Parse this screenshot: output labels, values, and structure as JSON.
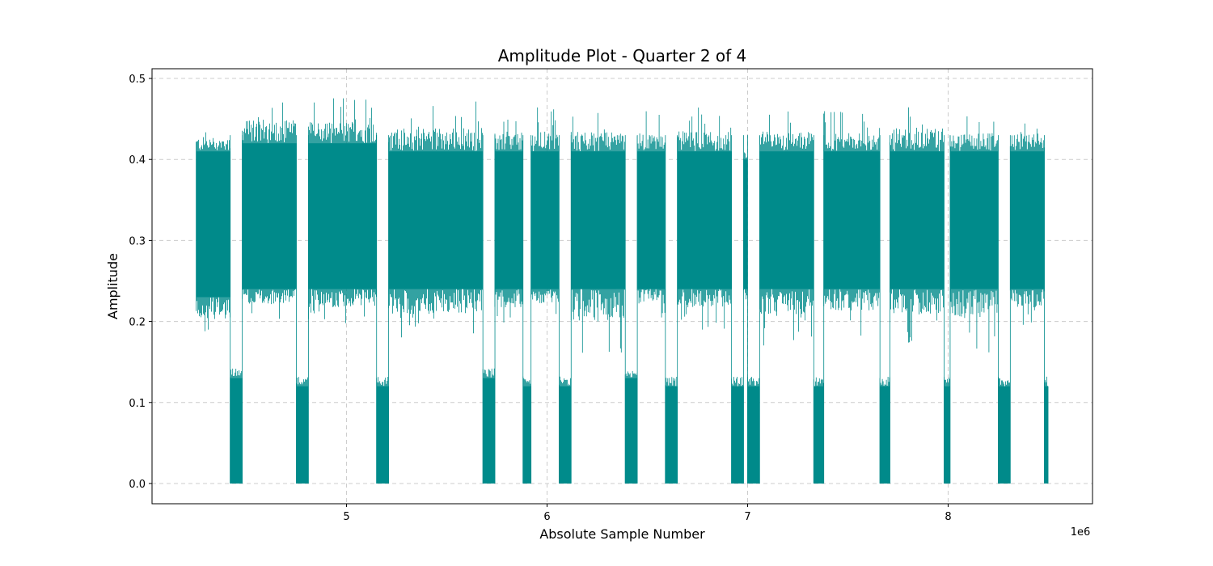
{
  "chart_data": {
    "type": "line",
    "title": "Amplitude Plot - Quarter 2 of 4",
    "xlabel": "Absolute Sample Number",
    "ylabel": "Amplitude",
    "x_offset_label": "1e6",
    "xlim": [
      4.03,
      8.72
    ],
    "ylim": [
      -0.025,
      0.512
    ],
    "xticks": [
      5,
      6,
      7,
      8
    ],
    "xtick_labels": [
      "5",
      "6",
      "7",
      "8"
    ],
    "yticks": [
      0.0,
      0.1,
      0.2,
      0.3,
      0.4,
      0.5
    ],
    "ytick_labels": [
      "0.0",
      "0.1",
      "0.2",
      "0.3",
      "0.4",
      "0.5"
    ],
    "grid": true,
    "color": "#008b8b",
    "series": [
      {
        "segments": [
          {
            "kind": "high",
            "x_start": 4.25,
            "x_end": 4.42,
            "low": 0.23,
            "high": 0.41,
            "peak_max": 0.45,
            "peak_min": 0.17
          },
          {
            "kind": "low",
            "x_start": 4.42,
            "x_end": 4.48,
            "low": 0.0,
            "high": 0.13
          },
          {
            "kind": "high",
            "x_start": 4.48,
            "x_end": 4.75,
            "low": 0.24,
            "high": 0.42,
            "peak_max": 0.485,
            "peak_min": 0.2
          },
          {
            "kind": "low",
            "x_start": 4.75,
            "x_end": 4.81,
            "low": 0.0,
            "high": 0.12
          },
          {
            "kind": "high",
            "x_start": 4.81,
            "x_end": 5.15,
            "low": 0.24,
            "high": 0.42,
            "peak_max": 0.48,
            "peak_min": 0.19
          },
          {
            "kind": "low",
            "x_start": 5.15,
            "x_end": 5.21,
            "low": 0.0,
            "high": 0.12
          },
          {
            "kind": "high",
            "x_start": 5.21,
            "x_end": 5.68,
            "low": 0.24,
            "high": 0.41,
            "peak_max": 0.475,
            "peak_min": 0.17
          },
          {
            "kind": "low",
            "x_start": 5.68,
            "x_end": 5.74,
            "low": 0.0,
            "high": 0.13
          },
          {
            "kind": "high",
            "x_start": 5.74,
            "x_end": 5.88,
            "low": 0.24,
            "high": 0.41,
            "peak_max": 0.46,
            "peak_min": 0.19
          },
          {
            "kind": "low",
            "x_start": 5.88,
            "x_end": 5.92,
            "low": 0.0,
            "high": 0.12
          },
          {
            "kind": "high",
            "x_start": 5.92,
            "x_end": 6.06,
            "low": 0.24,
            "high": 0.41,
            "peak_max": 0.465,
            "peak_min": 0.2
          },
          {
            "kind": "low",
            "x_start": 6.06,
            "x_end": 6.12,
            "low": 0.0,
            "high": 0.12
          },
          {
            "kind": "high",
            "x_start": 6.12,
            "x_end": 6.39,
            "low": 0.24,
            "high": 0.41,
            "peak_max": 0.465,
            "peak_min": 0.15
          },
          {
            "kind": "low",
            "x_start": 6.39,
            "x_end": 6.45,
            "low": 0.0,
            "high": 0.13
          },
          {
            "kind": "high",
            "x_start": 6.45,
            "x_end": 6.59,
            "low": 0.24,
            "high": 0.41,
            "peak_max": 0.46,
            "peak_min": 0.2
          },
          {
            "kind": "low",
            "x_start": 6.59,
            "x_end": 6.65,
            "low": 0.0,
            "high": 0.12
          },
          {
            "kind": "high",
            "x_start": 6.65,
            "x_end": 6.92,
            "low": 0.24,
            "high": 0.41,
            "peak_max": 0.465,
            "peak_min": 0.19
          },
          {
            "kind": "low",
            "x_start": 6.92,
            "x_end": 6.98,
            "low": 0.0,
            "high": 0.12
          },
          {
            "kind": "high",
            "x_start": 6.98,
            "x_end": 7.0,
            "low": 0.24,
            "high": 0.4,
            "peak_max": 0.42,
            "peak_min": 0.2
          },
          {
            "kind": "low",
            "x_start": 7.0,
            "x_end": 7.06,
            "low": 0.0,
            "high": 0.12
          },
          {
            "kind": "high",
            "x_start": 7.06,
            "x_end": 7.33,
            "low": 0.24,
            "high": 0.41,
            "peak_max": 0.465,
            "peak_min": 0.17
          },
          {
            "kind": "low",
            "x_start": 7.33,
            "x_end": 7.38,
            "low": 0.0,
            "high": 0.12
          },
          {
            "kind": "high",
            "x_start": 7.38,
            "x_end": 7.66,
            "low": 0.24,
            "high": 0.41,
            "peak_max": 0.46,
            "peak_min": 0.18
          },
          {
            "kind": "low",
            "x_start": 7.66,
            "x_end": 7.71,
            "low": 0.0,
            "high": 0.12
          },
          {
            "kind": "high",
            "x_start": 7.71,
            "x_end": 7.98,
            "low": 0.24,
            "high": 0.41,
            "peak_max": 0.475,
            "peak_min": 0.17
          },
          {
            "kind": "low",
            "x_start": 7.98,
            "x_end": 8.01,
            "low": 0.0,
            "high": 0.12
          },
          {
            "kind": "high",
            "x_start": 8.01,
            "x_end": 8.25,
            "low": 0.24,
            "high": 0.41,
            "peak_max": 0.46,
            "peak_min": 0.16
          },
          {
            "kind": "low",
            "x_start": 8.25,
            "x_end": 8.31,
            "low": 0.0,
            "high": 0.12
          },
          {
            "kind": "high",
            "x_start": 8.31,
            "x_end": 8.48,
            "low": 0.24,
            "high": 0.41,
            "peak_max": 0.46,
            "peak_min": 0.19
          },
          {
            "kind": "low",
            "x_start": 8.48,
            "x_end": 8.5,
            "low": 0.0,
            "high": 0.12
          }
        ]
      }
    ]
  }
}
